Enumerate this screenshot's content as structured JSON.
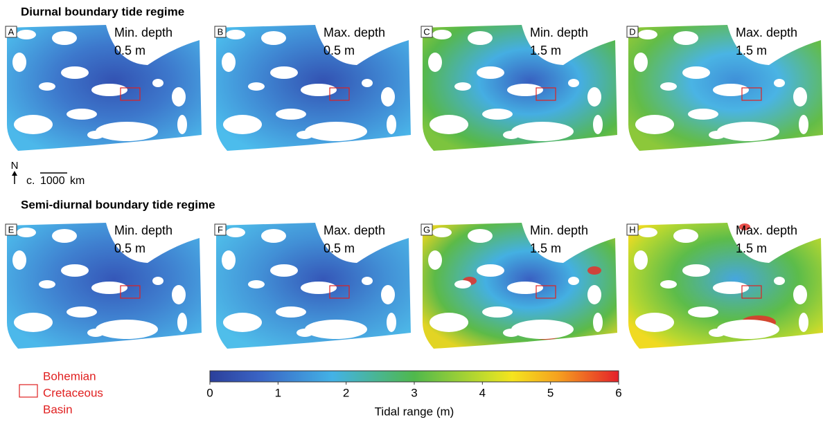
{
  "figure": {
    "rows": [
      {
        "title": "Diurnal boundary tide regime",
        "panels": [
          {
            "letter": "A",
            "depth_label": "Min. depth",
            "depth_value": "0.5 m"
          },
          {
            "letter": "B",
            "depth_label": "Max. depth",
            "depth_value": "0.5 m"
          },
          {
            "letter": "C",
            "depth_label": "Min. depth",
            "depth_value": "1.5 m"
          },
          {
            "letter": "D",
            "depth_label": "Max. depth",
            "depth_value": "1.5 m"
          }
        ]
      },
      {
        "title": "Semi-diurnal boundary tide regime",
        "panels": [
          {
            "letter": "E",
            "depth_label": "Min. depth",
            "depth_value": "0.5 m"
          },
          {
            "letter": "F",
            "depth_label": "Max. depth",
            "depth_value": "0.5 m"
          },
          {
            "letter": "G",
            "depth_label": "Min. depth",
            "depth_value": "1.5 m"
          },
          {
            "letter": "H",
            "depth_label": "Max. depth",
            "depth_value": "1.5 m"
          }
        ]
      }
    ],
    "scale": {
      "north": "N",
      "prefix": "c.",
      "distance": "1000",
      "unit": "km"
    },
    "legend": {
      "label_lines": [
        "Bohemian",
        "Cretaceous",
        "Basin"
      ]
    },
    "colorbar": {
      "label": "Tidal range (m)",
      "lim": [
        0,
        6
      ],
      "ticks": [
        0,
        1,
        2,
        3,
        4,
        5,
        6
      ]
    }
  }
}
